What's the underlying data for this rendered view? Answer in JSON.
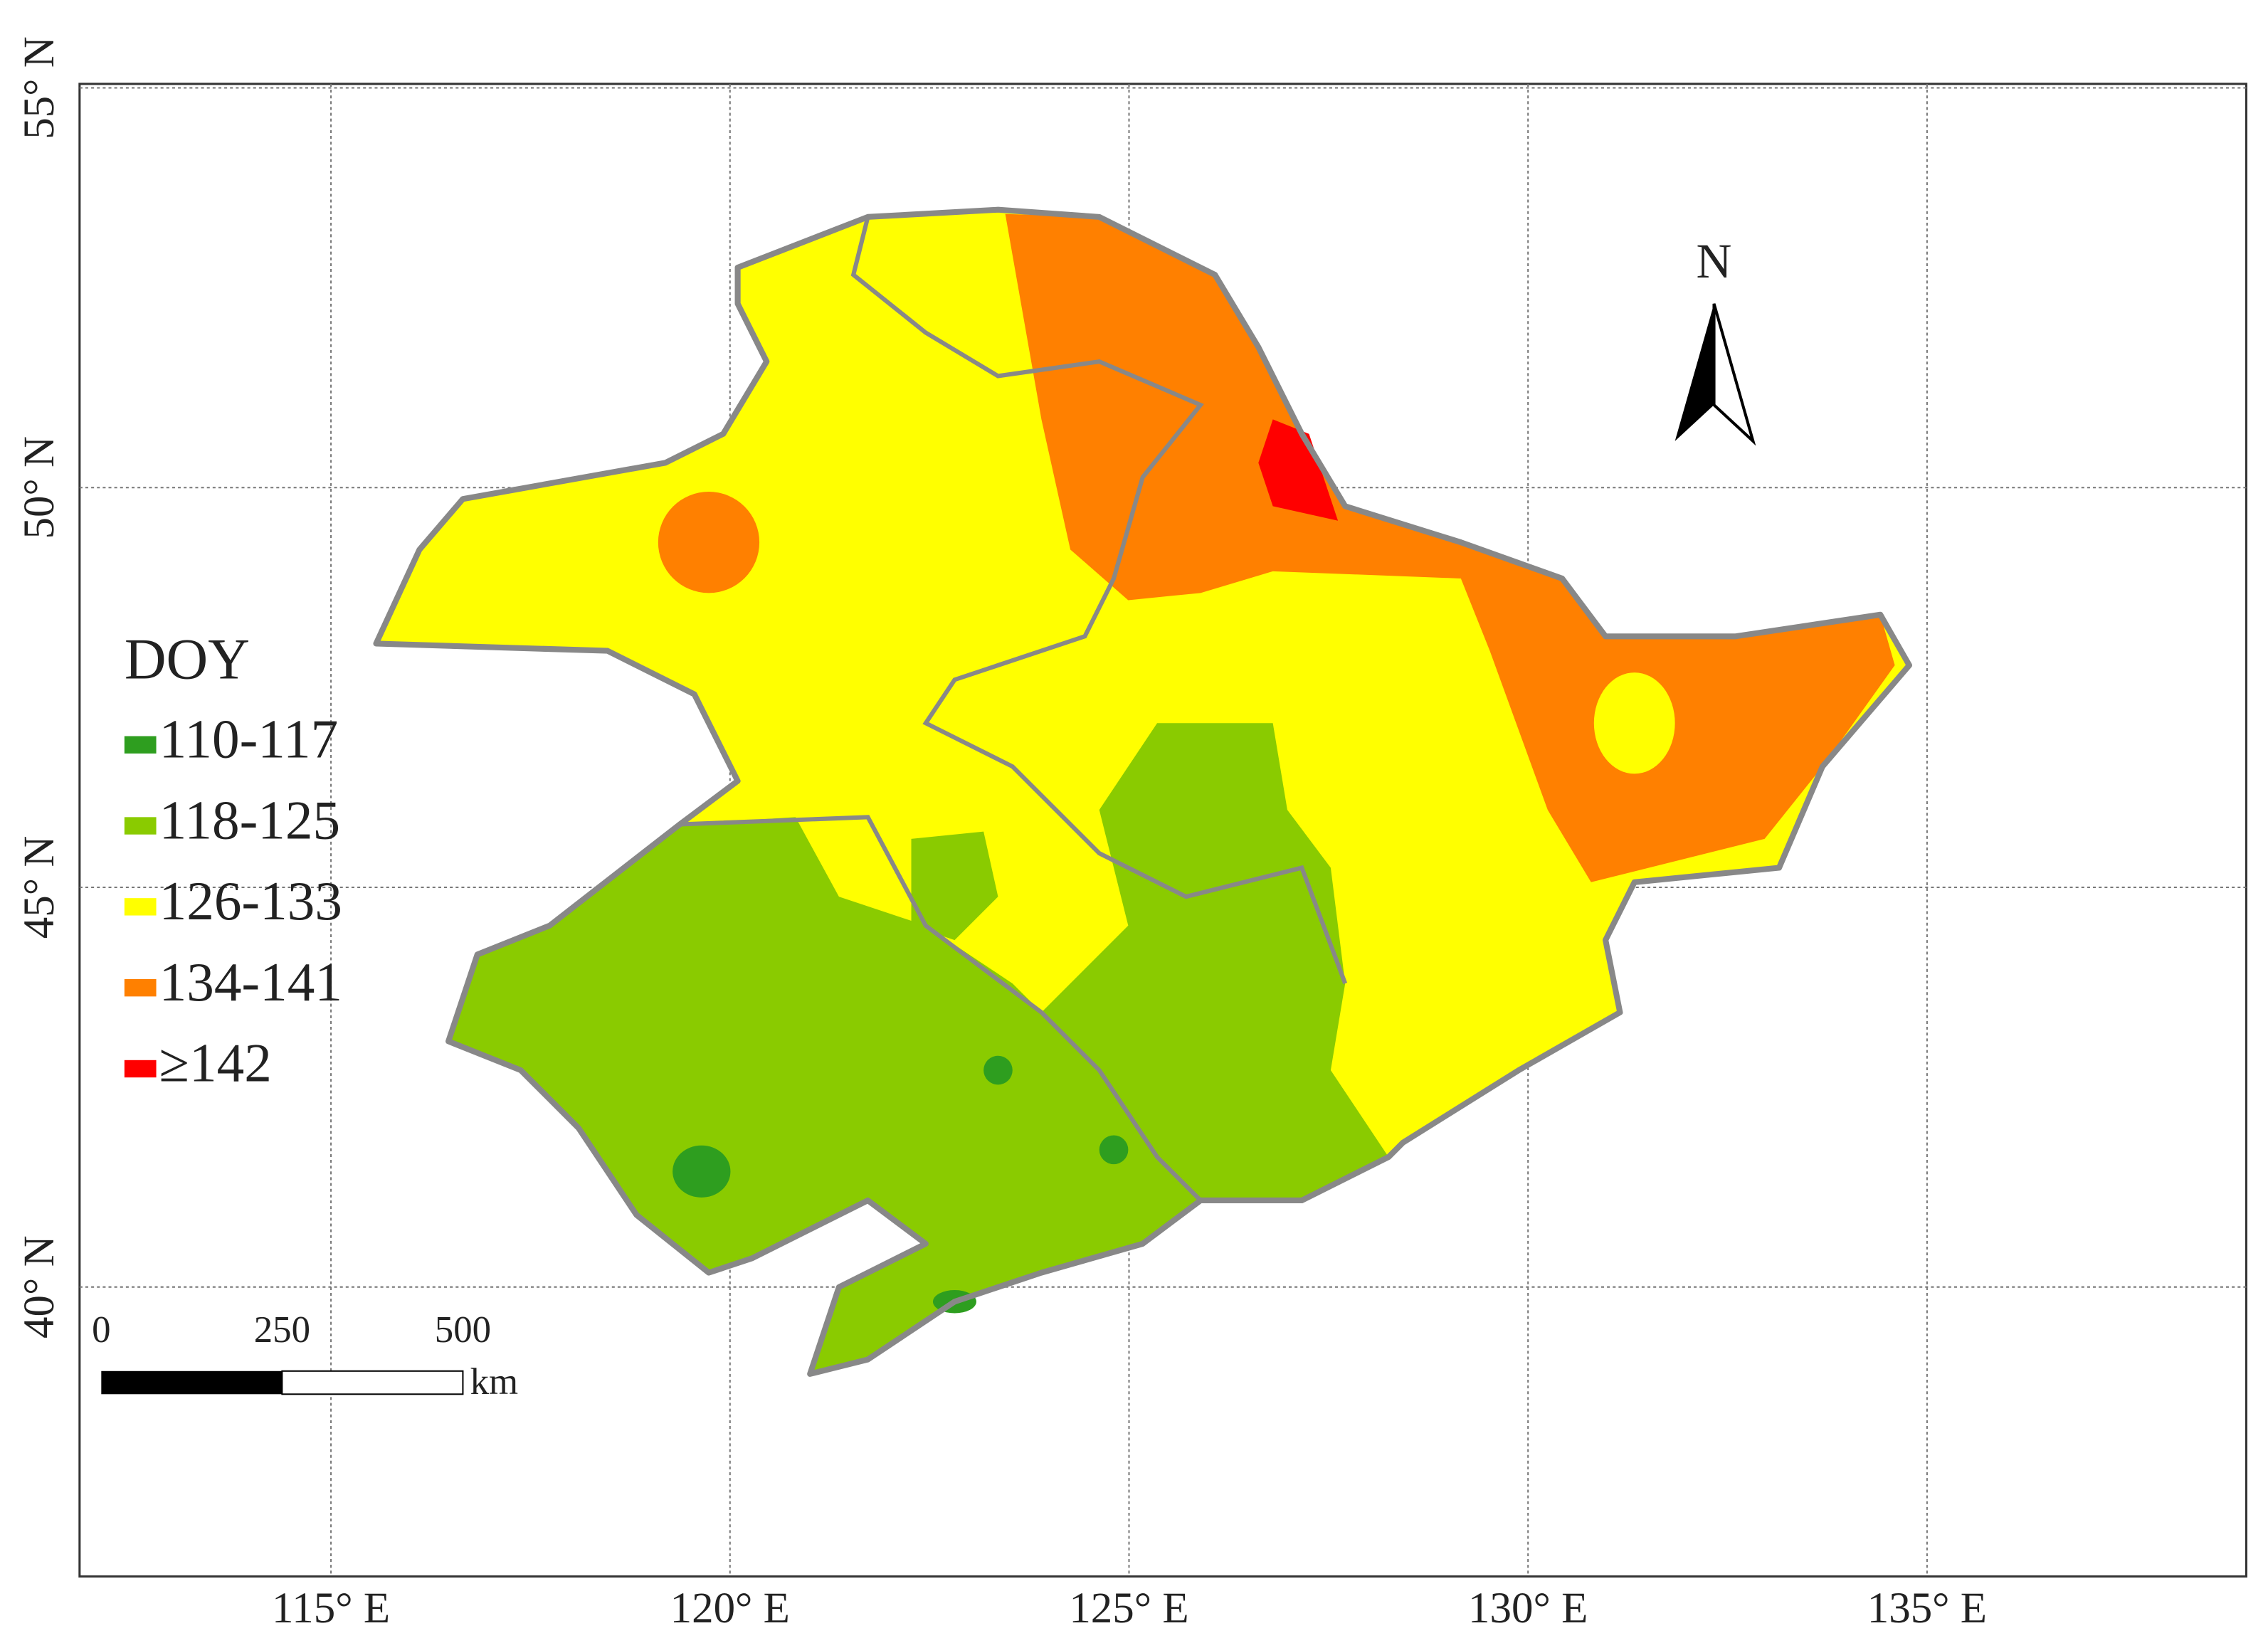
{
  "map": {
    "lonlim": [
      111.85,
      139
    ],
    "latlim": [
      36.38,
      55.05
    ],
    "lon_ticks": [
      {
        "value": 115,
        "label": "115° E"
      },
      {
        "value": 120,
        "label": "120° E"
      },
      {
        "value": 125,
        "label": "125° E"
      },
      {
        "value": 130,
        "label": "130° E"
      },
      {
        "value": 135,
        "label": "135° E"
      }
    ],
    "lat_ticks": [
      {
        "value": 40,
        "label": "40° N"
      },
      {
        "value": 45,
        "label": "45° N"
      },
      {
        "value": 50,
        "label": "50° N"
      },
      {
        "value": 55,
        "label": "55° N"
      }
    ],
    "legend": {
      "title": "DOY",
      "items": [
        {
          "label": "110-117",
          "color": "#2e9e1f"
        },
        {
          "label": "118-125",
          "color": "#8acb00"
        },
        {
          "label": "126-133",
          "color": "#ffff00"
        },
        {
          "label": "134-141",
          "color": "#ff8000"
        },
        {
          "label": "≥142",
          "color": "#ff0000"
        }
      ]
    },
    "scale_bar": {
      "labels": [
        "0",
        "250",
        "500"
      ],
      "unit": "km"
    },
    "north_label": "N"
  }
}
